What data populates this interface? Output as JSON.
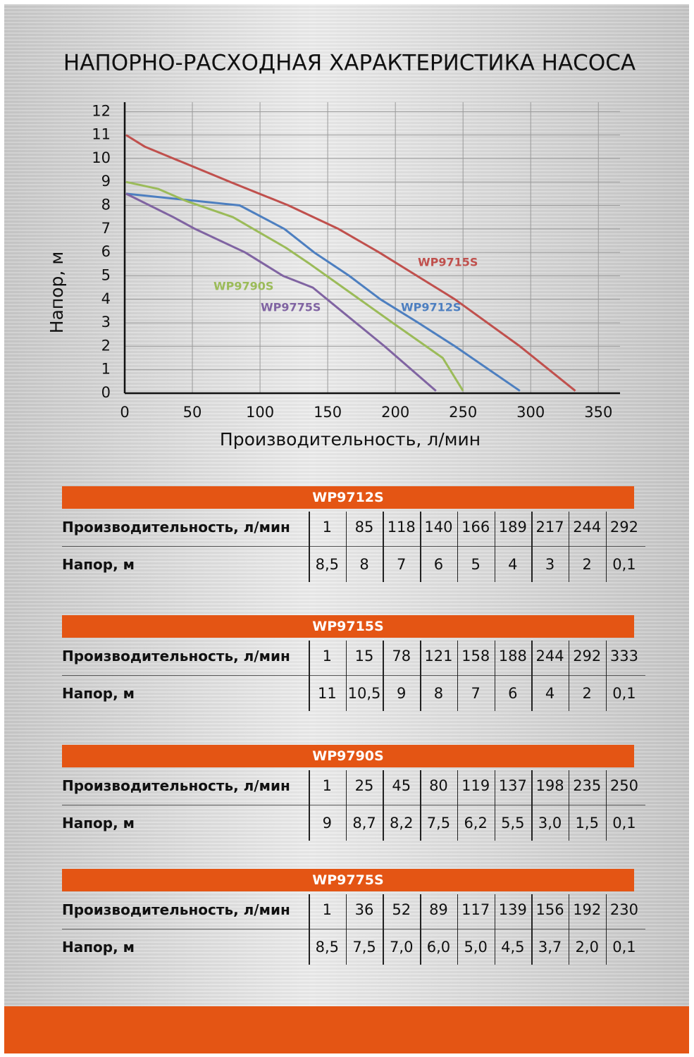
{
  "chart_data": {
    "type": "line",
    "title": "НАПОРНО-РАСХОДНАЯ ХАРАКТЕРИСТИКА НАСОСА",
    "x_label": "Производительность, л/мин",
    "y_label": "Напор, м",
    "xlim": [
      0,
      366
    ],
    "ylim": [
      0,
      12.4
    ],
    "xticks": [
      0,
      50,
      100,
      150,
      200,
      250,
      300,
      350
    ],
    "yticks": [
      0,
      1,
      2,
      3,
      4,
      5,
      6,
      7,
      8,
      9,
      10,
      11,
      12
    ],
    "grid": true,
    "series": [
      {
        "name": "WP9712S",
        "color": "#4d7fc0",
        "x": [
          1,
          85,
          118,
          140,
          166,
          189,
          217,
          244,
          292
        ],
        "values": [
          8.5,
          8,
          7,
          6,
          5,
          4,
          3,
          2,
          0.1
        ]
      },
      {
        "name": "WP9715S",
        "color": "#c0504d",
        "x": [
          1,
          15,
          78,
          121,
          158,
          188,
          244,
          292,
          333
        ],
        "values": [
          11,
          10.5,
          9,
          8,
          7,
          6,
          4,
          2,
          0.1
        ]
      },
      {
        "name": "WP9790S",
        "color": "#9bbb59",
        "x": [
          1,
          25,
          45,
          80,
          119,
          137,
          198,
          235,
          250
        ],
        "values": [
          9,
          8.7,
          8.2,
          7.5,
          6.2,
          5.5,
          3.0,
          1.5,
          0.1
        ]
      },
      {
        "name": "WP9775S",
        "color": "#8064a2",
        "x": [
          1,
          36,
          52,
          89,
          117,
          139,
          156,
          192,
          230
        ],
        "values": [
          8.5,
          7.5,
          7.0,
          6.0,
          5.0,
          4.5,
          3.7,
          2.0,
          0.1
        ]
      }
    ]
  },
  "tables": [
    {
      "title": "WP9712S",
      "rows": [
        [
          "Производительность, л/мин",
          "1",
          "85",
          "118",
          "140",
          "166",
          "189",
          "217",
          "244",
          "292"
        ],
        [
          "Напор, м",
          "8,5",
          "8",
          "7",
          "6",
          "5",
          "4",
          "3",
          "2",
          "0,1"
        ]
      ]
    },
    {
      "title": "WP9715S",
      "rows": [
        [
          "Производительность, л/мин",
          "1",
          "15",
          "78",
          "121",
          "158",
          "188",
          "244",
          "292",
          "333"
        ],
        [
          "Напор, м",
          "11",
          "10,5",
          "9",
          "8",
          "7",
          "6",
          "4",
          "2",
          "0,1"
        ]
      ]
    },
    {
      "title": "WP9790S",
      "rows": [
        [
          "Производительность, л/мин",
          "1",
          "25",
          "45",
          "80",
          "119",
          "137",
          "198",
          "235",
          "250"
        ],
        [
          "Напор, м",
          "9",
          "8,7",
          "8,2",
          "7,5",
          "6,2",
          "5,5",
          "3,0",
          "1,5",
          "0,1"
        ]
      ]
    },
    {
      "title": "WP9775S",
      "rows": [
        [
          "Производительность, л/мин",
          "1",
          "36",
          "52",
          "89",
          "117",
          "139",
          "156",
          "192",
          "230"
        ],
        [
          "Напор, м",
          "8,5",
          "7,5",
          "7,0",
          "6,0",
          "5,0",
          "4,5",
          "3,7",
          "2,0",
          "0,1"
        ]
      ]
    }
  ]
}
